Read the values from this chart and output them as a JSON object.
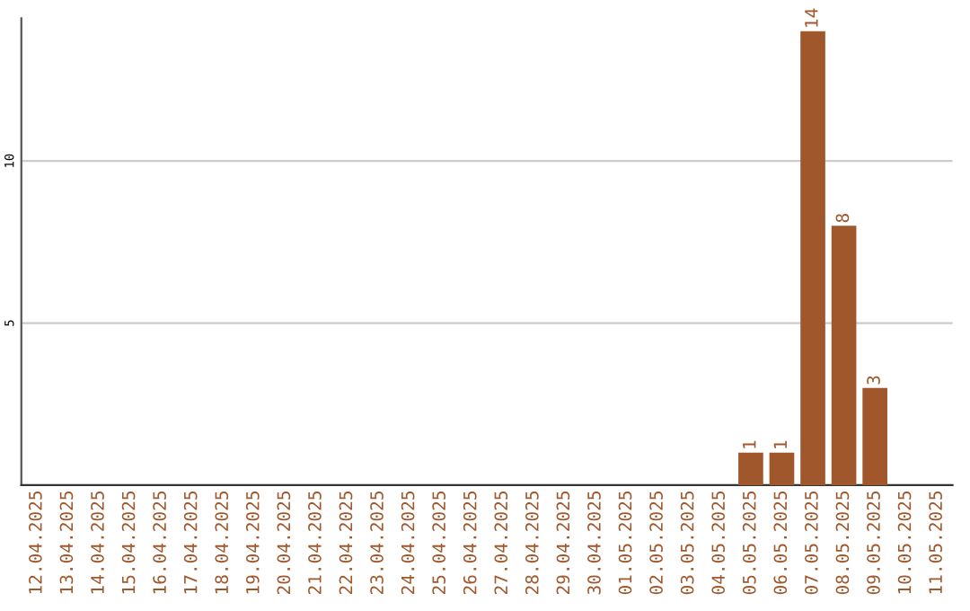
{
  "chart_data": {
    "type": "bar",
    "categories": [
      "12.04.2025",
      "13.04.2025",
      "14.04.2025",
      "15.04.2025",
      "16.04.2025",
      "17.04.2025",
      "18.04.2025",
      "19.04.2025",
      "20.04.2025",
      "21.04.2025",
      "22.04.2025",
      "23.04.2025",
      "24.04.2025",
      "25.04.2025",
      "26.04.2025",
      "27.04.2025",
      "28.04.2025",
      "29.04.2025",
      "30.04.2025",
      "01.05.2025",
      "02.05.2025",
      "03.05.2025",
      "04.05.2025",
      "05.05.2025",
      "06.05.2025",
      "07.05.2025",
      "08.05.2025",
      "09.05.2025",
      "10.05.2025",
      "11.05.2025"
    ],
    "values": [
      0,
      0,
      0,
      0,
      0,
      0,
      0,
      0,
      0,
      0,
      0,
      0,
      0,
      0,
      0,
      0,
      0,
      0,
      0,
      0,
      0,
      0,
      0,
      1,
      1,
      14,
      8,
      3,
      0,
      0
    ],
    "value_labels": [
      null,
      null,
      null,
      null,
      null,
      null,
      null,
      null,
      null,
      null,
      null,
      null,
      null,
      null,
      null,
      null,
      null,
      null,
      null,
      null,
      null,
      null,
      null,
      "1",
      "1",
      "14",
      "8",
      "3",
      null,
      null
    ],
    "color": "#a0572b",
    "ylim": [
      0,
      14.4
    ],
    "yticks": [
      5,
      10
    ],
    "grid": "y"
  }
}
